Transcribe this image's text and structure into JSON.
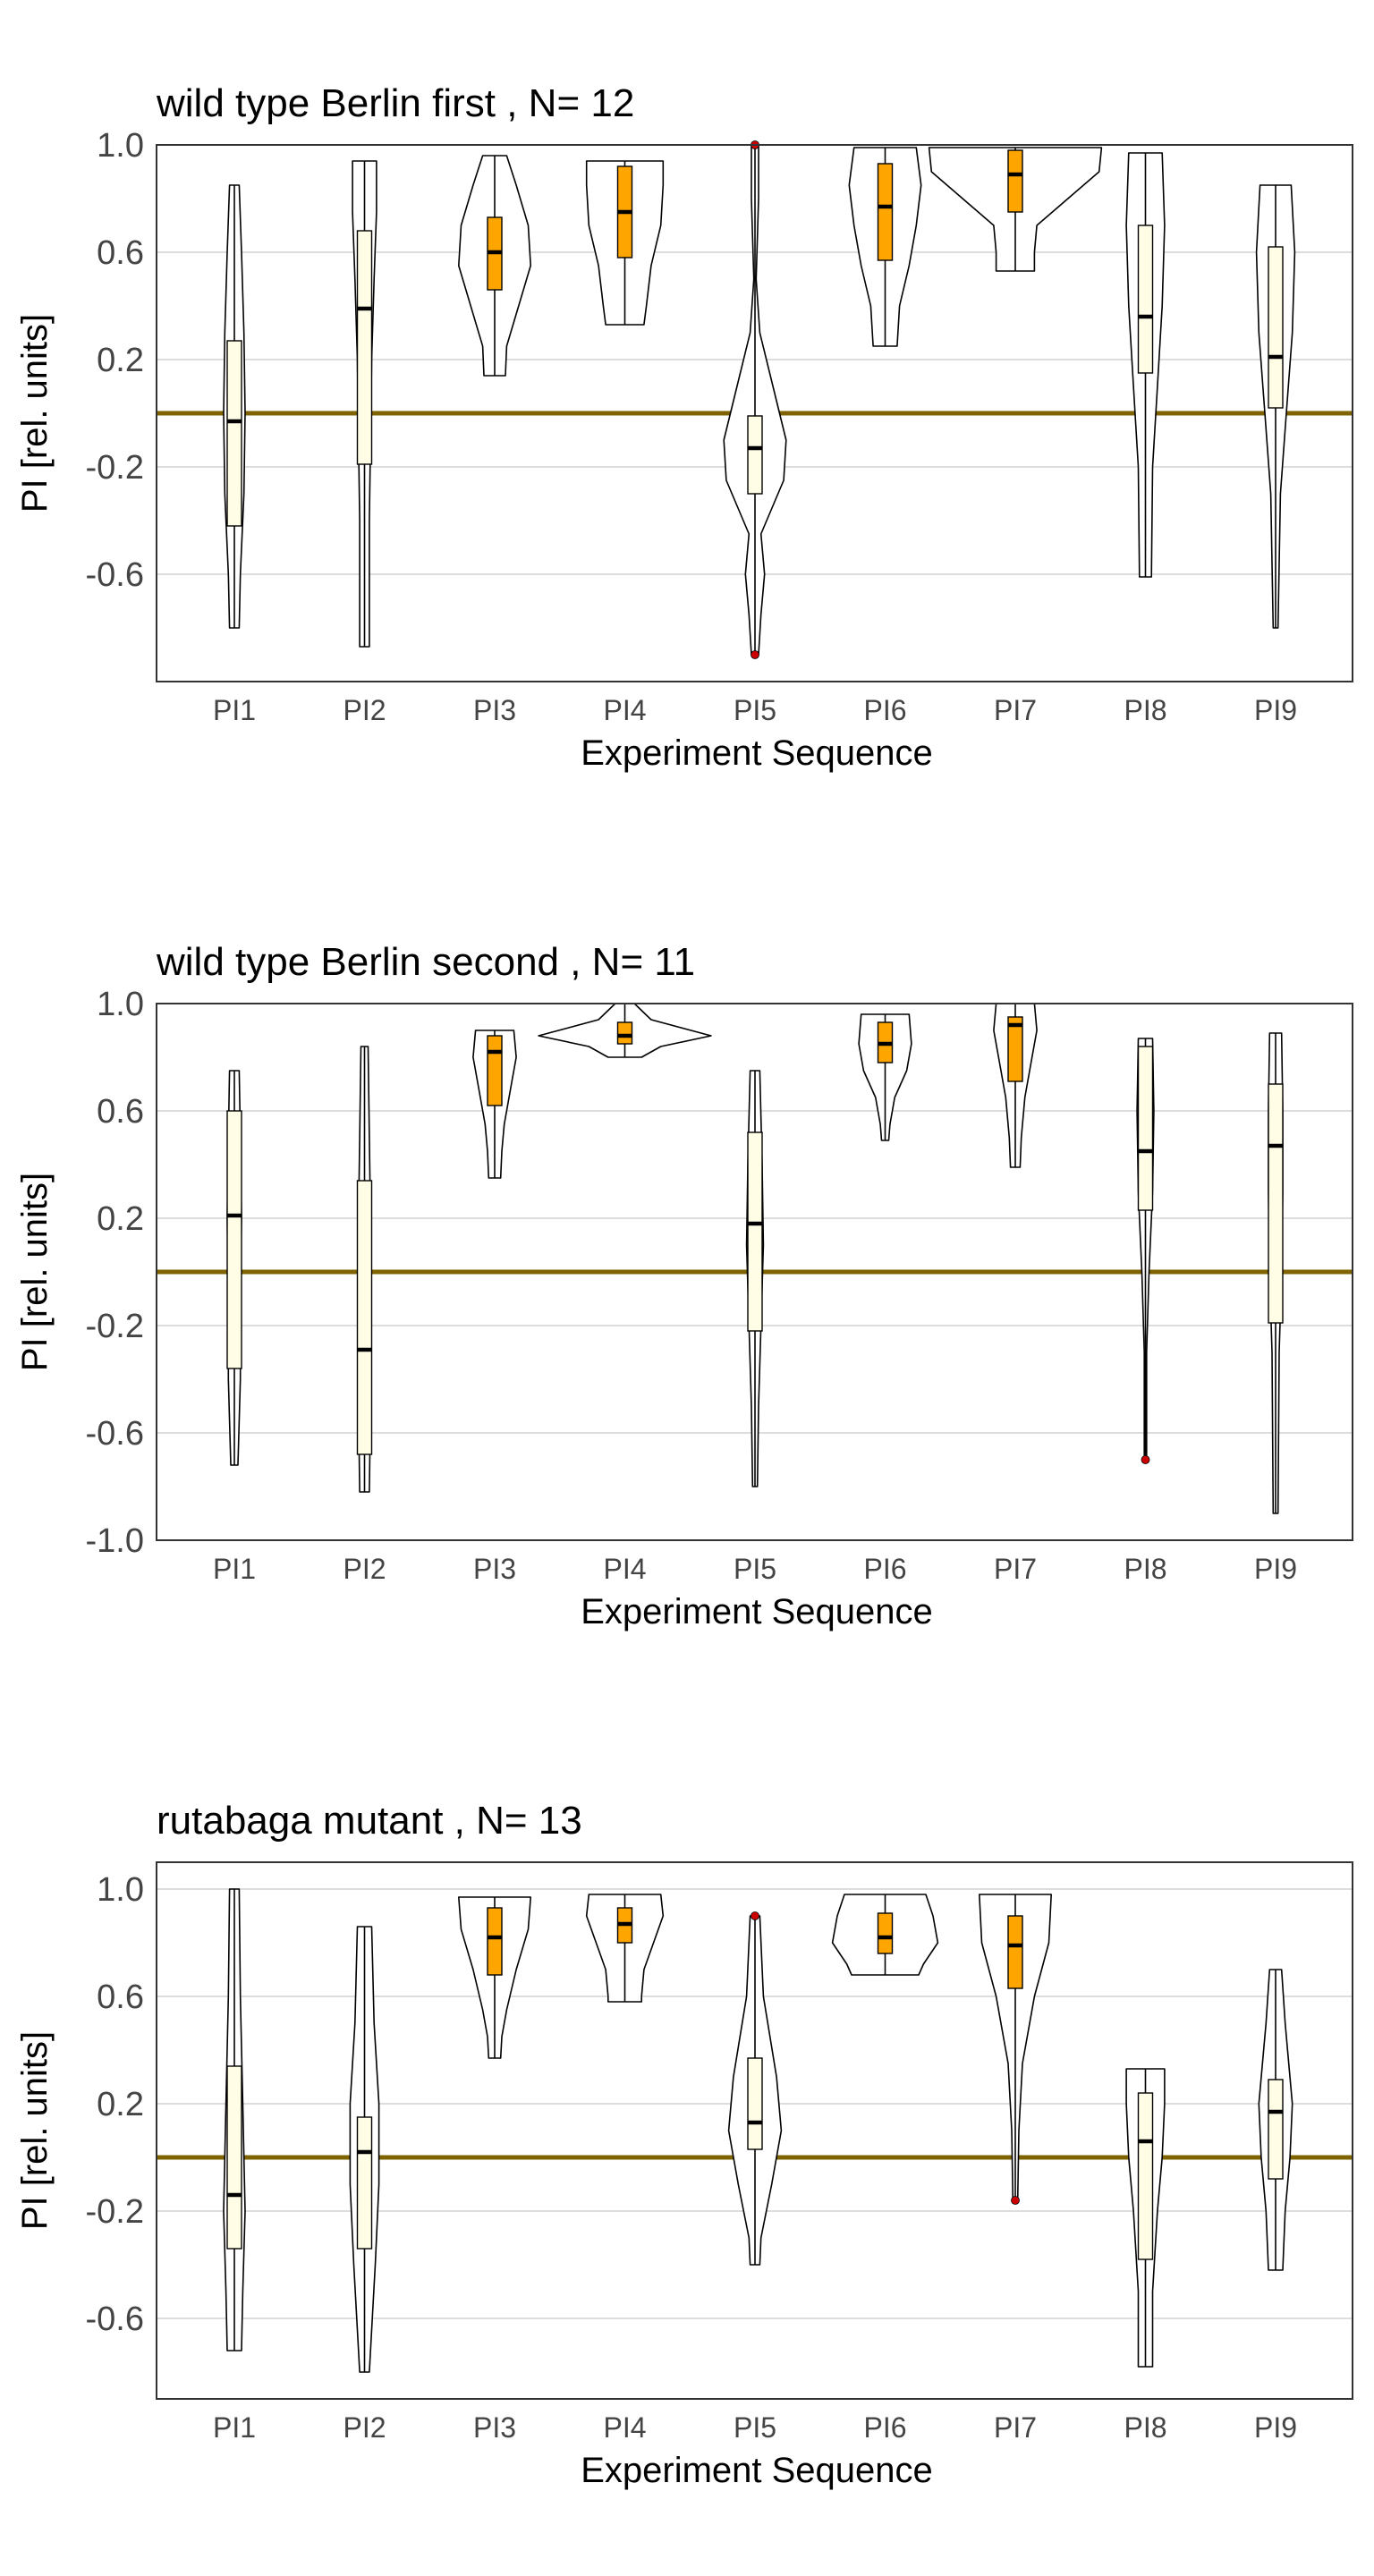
{
  "chart_data": [
    {
      "type": "violin",
      "title": "wild type Berlin first , N= 12",
      "xlabel": "Experiment Sequence",
      "ylabel": "PI [rel. units]",
      "ylim": [
        -1.0,
        1.0
      ],
      "yticks": [
        "1.0",
        "0.6",
        "0.2",
        "-0.2",
        "-0.6"
      ],
      "reference_line": 0,
      "grid": true,
      "categories": [
        "PI1",
        "PI2",
        "PI3",
        "PI4",
        "PI5",
        "PI6",
        "PI7",
        "PI8",
        "PI9"
      ],
      "series": [
        {
          "category": "PI1",
          "min": -0.8,
          "max": 0.85,
          "q1": -0.42,
          "median": -0.03,
          "q3": 0.27,
          "fill": "light",
          "profile": [
            [
              0.85,
              0.04
            ],
            [
              0.6,
              0.06
            ],
            [
              0.3,
              0.08
            ],
            [
              0.0,
              0.09
            ],
            [
              -0.3,
              0.08
            ],
            [
              -0.6,
              0.05
            ],
            [
              -0.8,
              0.04
            ]
          ]
        },
        {
          "category": "PI2",
          "min": -0.87,
          "max": 0.94,
          "q1": -0.19,
          "median": 0.39,
          "q3": 0.68,
          "fill": "light",
          "profile": [
            [
              0.94,
              0.1
            ],
            [
              0.75,
              0.1
            ],
            [
              0.5,
              0.08
            ],
            [
              0.2,
              0.06
            ],
            [
              -0.1,
              0.05
            ],
            [
              -0.4,
              0.04
            ],
            [
              -0.87,
              0.04
            ]
          ]
        },
        {
          "category": "PI3",
          "min": 0.14,
          "max": 0.96,
          "q1": 0.46,
          "median": 0.6,
          "q3": 0.73,
          "fill": "orange",
          "profile": [
            [
              0.96,
              0.1
            ],
            [
              0.85,
              0.18
            ],
            [
              0.7,
              0.28
            ],
            [
              0.55,
              0.3
            ],
            [
              0.4,
              0.2
            ],
            [
              0.25,
              0.1
            ],
            [
              0.14,
              0.09
            ]
          ]
        },
        {
          "category": "PI4",
          "min": 0.33,
          "max": 0.94,
          "q1": 0.58,
          "median": 0.75,
          "q3": 0.92,
          "fill": "orange",
          "profile": [
            [
              0.94,
              0.32
            ],
            [
              0.85,
              0.32
            ],
            [
              0.7,
              0.3
            ],
            [
              0.55,
              0.22
            ],
            [
              0.4,
              0.18
            ],
            [
              0.33,
              0.16
            ]
          ]
        },
        {
          "category": "PI5",
          "min": -0.9,
          "max": 1.0,
          "q1": -0.3,
          "median": -0.13,
          "q3": -0.01,
          "fill": "light",
          "outliers": [
            1.0,
            -0.9
          ],
          "profile": [
            [
              1.0,
              0.03
            ],
            [
              0.8,
              0.03
            ],
            [
              0.5,
              0.01
            ],
            [
              0.3,
              0.04
            ],
            [
              0.1,
              0.15
            ],
            [
              -0.1,
              0.26
            ],
            [
              -0.25,
              0.24
            ],
            [
              -0.45,
              0.05
            ],
            [
              -0.6,
              0.08
            ],
            [
              -0.75,
              0.05
            ],
            [
              -0.9,
              0.03
            ]
          ]
        },
        {
          "category": "PI6",
          "min": 0.25,
          "max": 0.99,
          "q1": 0.57,
          "median": 0.77,
          "q3": 0.93,
          "fill": "orange",
          "profile": [
            [
              0.99,
              0.26
            ],
            [
              0.85,
              0.3
            ],
            [
              0.7,
              0.26
            ],
            [
              0.55,
              0.2
            ],
            [
              0.4,
              0.12
            ],
            [
              0.25,
              0.1
            ]
          ]
        },
        {
          "category": "PI7",
          "min": 0.53,
          "max": 0.99,
          "q1": 0.75,
          "median": 0.89,
          "q3": 0.98,
          "fill": "orange",
          "profile": [
            [
              0.99,
              0.72
            ],
            [
              0.9,
              0.7
            ],
            [
              0.8,
              0.44
            ],
            [
              0.7,
              0.18
            ],
            [
              0.6,
              0.16
            ],
            [
              0.53,
              0.16
            ]
          ]
        },
        {
          "category": "PI8",
          "min": -0.61,
          "max": 0.97,
          "q1": 0.15,
          "median": 0.36,
          "q3": 0.7,
          "fill": "light",
          "profile": [
            [
              0.97,
              0.14
            ],
            [
              0.7,
              0.16
            ],
            [
              0.4,
              0.14
            ],
            [
              0.1,
              0.1
            ],
            [
              -0.2,
              0.06
            ],
            [
              -0.61,
              0.05
            ]
          ]
        },
        {
          "category": "PI9",
          "min": -0.8,
          "max": 0.85,
          "q1": 0.02,
          "median": 0.21,
          "q3": 0.62,
          "fill": "light",
          "profile": [
            [
              0.85,
              0.13
            ],
            [
              0.6,
              0.16
            ],
            [
              0.3,
              0.14
            ],
            [
              0.0,
              0.09
            ],
            [
              -0.3,
              0.04
            ],
            [
              -0.8,
              0.02
            ]
          ]
        }
      ]
    },
    {
      "type": "violin",
      "title": "wild type Berlin second , N= 11",
      "xlabel": "Experiment Sequence",
      "ylabel": "PI [rel. units]",
      "ylim": [
        -1.0,
        1.0
      ],
      "yticks": [
        "1.0",
        "0.6",
        "0.2",
        "-0.2",
        "-0.6",
        "-1.0"
      ],
      "reference_line": 0,
      "grid": true,
      "categories": [
        "PI1",
        "PI2",
        "PI3",
        "PI4",
        "PI5",
        "PI6",
        "PI7",
        "PI8",
        "PI9"
      ],
      "series": [
        {
          "category": "PI1",
          "min": -0.72,
          "max": 0.75,
          "q1": -0.36,
          "median": 0.21,
          "q3": 0.6,
          "fill": "light",
          "profile": [
            [
              0.75,
              0.04
            ],
            [
              0.5,
              0.05
            ],
            [
              0.2,
              0.06
            ],
            [
              -0.1,
              0.05
            ],
            [
              -0.4,
              0.05
            ],
            [
              -0.72,
              0.03
            ]
          ]
        },
        {
          "category": "PI2",
          "min": -0.82,
          "max": 0.84,
          "q1": -0.68,
          "median": -0.29,
          "q3": 0.34,
          "fill": "light",
          "profile": [
            [
              0.84,
              0.03
            ],
            [
              0.5,
              0.04
            ],
            [
              0.2,
              0.05
            ],
            [
              -0.2,
              0.05
            ],
            [
              -0.5,
              0.05
            ],
            [
              -0.82,
              0.04
            ]
          ]
        },
        {
          "category": "PI3",
          "min": 0.35,
          "max": 0.9,
          "q1": 0.62,
          "median": 0.82,
          "q3": 0.88,
          "fill": "orange",
          "profile": [
            [
              0.9,
              0.16
            ],
            [
              0.8,
              0.18
            ],
            [
              0.7,
              0.14
            ],
            [
              0.55,
              0.08
            ],
            [
              0.45,
              0.06
            ],
            [
              0.35,
              0.05
            ]
          ]
        },
        {
          "category": "PI4",
          "min": 0.8,
          "max": 1.0,
          "q1": 0.85,
          "median": 0.88,
          "q3": 0.93,
          "fill": "orange",
          "profile": [
            [
              1.0,
              0.08
            ],
            [
              0.94,
              0.22
            ],
            [
              0.88,
              0.72
            ],
            [
              0.84,
              0.3
            ],
            [
              0.8,
              0.14
            ]
          ]
        },
        {
          "category": "PI5",
          "min": -0.8,
          "max": 0.75,
          "q1": -0.22,
          "median": 0.18,
          "q3": 0.52,
          "fill": "light",
          "profile": [
            [
              0.75,
              0.04
            ],
            [
              0.4,
              0.06
            ],
            [
              0.1,
              0.07
            ],
            [
              -0.2,
              0.05
            ],
            [
              -0.5,
              0.03
            ],
            [
              -0.8,
              0.02
            ]
          ]
        },
        {
          "category": "PI6",
          "min": 0.49,
          "max": 0.96,
          "q1": 0.78,
          "median": 0.85,
          "q3": 0.93,
          "fill": "orange",
          "profile": [
            [
              0.96,
              0.2
            ],
            [
              0.85,
              0.22
            ],
            [
              0.75,
              0.18
            ],
            [
              0.65,
              0.08
            ],
            [
              0.55,
              0.04
            ],
            [
              0.49,
              0.03
            ]
          ]
        },
        {
          "category": "PI7",
          "min": 0.39,
          "max": 1.0,
          "q1": 0.71,
          "median": 0.92,
          "q3": 0.95,
          "fill": "orange",
          "profile": [
            [
              1.0,
              0.16
            ],
            [
              0.9,
              0.18
            ],
            [
              0.8,
              0.14
            ],
            [
              0.65,
              0.08
            ],
            [
              0.5,
              0.05
            ],
            [
              0.39,
              0.04
            ]
          ]
        },
        {
          "category": "PI8",
          "min": -0.7,
          "max": 0.87,
          "q1": 0.23,
          "median": 0.45,
          "q3": 0.84,
          "fill": "light",
          "outliers": [
            -0.7
          ],
          "profile": [
            [
              0.87,
              0.06
            ],
            [
              0.6,
              0.07
            ],
            [
              0.3,
              0.06
            ],
            [
              0.0,
              0.03
            ],
            [
              -0.3,
              0.01
            ],
            [
              -0.7,
              0.01
            ]
          ]
        },
        {
          "category": "PI9",
          "min": -0.9,
          "max": 0.89,
          "q1": -0.19,
          "median": 0.47,
          "q3": 0.7,
          "fill": "light",
          "profile": [
            [
              0.89,
              0.05
            ],
            [
              0.6,
              0.06
            ],
            [
              0.3,
              0.06
            ],
            [
              0.0,
              0.05
            ],
            [
              -0.3,
              0.03
            ],
            [
              -0.9,
              0.02
            ]
          ]
        }
      ]
    },
    {
      "type": "violin",
      "title": "rutabaga mutant , N= 13",
      "xlabel": "Experiment Sequence",
      "ylabel": "PI [rel. units]",
      "ylim": [
        -0.9,
        1.1
      ],
      "yticks": [
        "1.0",
        "0.6",
        "0.2",
        "-0.2",
        "-0.6"
      ],
      "reference_line": 0,
      "grid": true,
      "categories": [
        "PI1",
        "PI2",
        "PI3",
        "PI4",
        "PI5",
        "PI6",
        "PI7",
        "PI8",
        "PI9"
      ],
      "series": [
        {
          "category": "PI1",
          "min": -0.72,
          "max": 1.0,
          "q1": -0.34,
          "median": -0.14,
          "q3": 0.34,
          "fill": "light",
          "profile": [
            [
              1.0,
              0.04
            ],
            [
              0.6,
              0.05
            ],
            [
              0.2,
              0.07
            ],
            [
              -0.2,
              0.09
            ],
            [
              -0.5,
              0.07
            ],
            [
              -0.72,
              0.06
            ]
          ]
        },
        {
          "category": "PI2",
          "min": -0.8,
          "max": 0.86,
          "q1": -0.34,
          "median": 0.02,
          "q3": 0.15,
          "fill": "light",
          "profile": [
            [
              0.86,
              0.06
            ],
            [
              0.5,
              0.08
            ],
            [
              0.2,
              0.12
            ],
            [
              -0.1,
              0.12
            ],
            [
              -0.4,
              0.09
            ],
            [
              -0.8,
              0.04
            ]
          ]
        },
        {
          "category": "PI3",
          "min": 0.37,
          "max": 0.97,
          "q1": 0.68,
          "median": 0.82,
          "q3": 0.93,
          "fill": "orange",
          "profile": [
            [
              0.97,
              0.3
            ],
            [
              0.85,
              0.28
            ],
            [
              0.7,
              0.18
            ],
            [
              0.55,
              0.1
            ],
            [
              0.45,
              0.06
            ],
            [
              0.37,
              0.05
            ]
          ]
        },
        {
          "category": "PI4",
          "min": 0.58,
          "max": 0.98,
          "q1": 0.8,
          "median": 0.87,
          "q3": 0.93,
          "fill": "orange",
          "profile": [
            [
              0.98,
              0.3
            ],
            [
              0.9,
              0.32
            ],
            [
              0.8,
              0.24
            ],
            [
              0.7,
              0.16
            ],
            [
              0.6,
              0.14
            ],
            [
              0.58,
              0.14
            ]
          ]
        },
        {
          "category": "PI5",
          "min": -0.4,
          "max": 0.9,
          "q1": 0.03,
          "median": 0.13,
          "q3": 0.37,
          "fill": "light",
          "outliers": [
            0.9
          ],
          "profile": [
            [
              0.9,
              0.04
            ],
            [
              0.6,
              0.07
            ],
            [
              0.3,
              0.18
            ],
            [
              0.1,
              0.22
            ],
            [
              -0.1,
              0.14
            ],
            [
              -0.3,
              0.05
            ],
            [
              -0.4,
              0.04
            ]
          ]
        },
        {
          "category": "PI6",
          "min": 0.68,
          "max": 0.98,
          "q1": 0.76,
          "median": 0.82,
          "q3": 0.91,
          "fill": "orange",
          "profile": [
            [
              0.98,
              0.34
            ],
            [
              0.9,
              0.4
            ],
            [
              0.8,
              0.44
            ],
            [
              0.72,
              0.32
            ],
            [
              0.68,
              0.28
            ]
          ]
        },
        {
          "category": "PI7",
          "min": -0.16,
          "max": 0.98,
          "q1": 0.63,
          "median": 0.79,
          "q3": 0.9,
          "fill": "orange",
          "outliers": [
            -0.16
          ],
          "profile": [
            [
              0.98,
              0.3
            ],
            [
              0.8,
              0.28
            ],
            [
              0.6,
              0.16
            ],
            [
              0.35,
              0.06
            ],
            [
              0.1,
              0.03
            ],
            [
              -0.16,
              0.02
            ]
          ]
        },
        {
          "category": "PI8",
          "min": -0.78,
          "max": 0.33,
          "q1": -0.38,
          "median": 0.06,
          "q3": 0.24,
          "fill": "light",
          "profile": [
            [
              0.33,
              0.16
            ],
            [
              0.2,
              0.16
            ],
            [
              0.0,
              0.14
            ],
            [
              -0.2,
              0.1
            ],
            [
              -0.5,
              0.06
            ],
            [
              -0.78,
              0.06
            ]
          ]
        },
        {
          "category": "PI9",
          "min": -0.42,
          "max": 0.7,
          "q1": -0.08,
          "median": 0.17,
          "q3": 0.29,
          "fill": "light",
          "profile": [
            [
              0.7,
              0.05
            ],
            [
              0.5,
              0.08
            ],
            [
              0.2,
              0.14
            ],
            [
              0.0,
              0.12
            ],
            [
              -0.2,
              0.08
            ],
            [
              -0.42,
              0.06
            ]
          ]
        }
      ]
    }
  ],
  "colors": {
    "reference_line": "#7f6300",
    "box_light": "#fffde6",
    "box_orange": "#ffa500",
    "outlier": "#cc0000",
    "gridline": "#dddddd",
    "frame": "#333333"
  }
}
